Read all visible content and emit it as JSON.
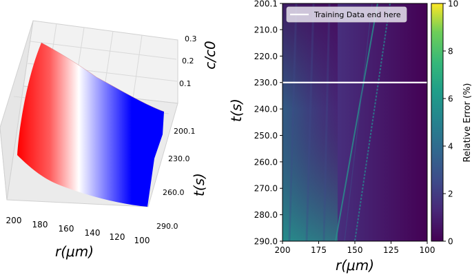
{
  "chart_data": [
    {
      "type": "surface3d",
      "xlabel": "r(μm)",
      "ylabel": "t(s)",
      "zlabel": "c/c0",
      "x_ticks": [
        "200",
        "180",
        "160",
        "140",
        "120",
        "100"
      ],
      "y_ticks": [
        "200.1",
        "230.0",
        "260.0",
        "290.0"
      ],
      "z_ticks": [
        "0.3",
        "0.2",
        "0.1"
      ],
      "xlim": [
        200,
        100
      ],
      "ylim": [
        200.1,
        290
      ],
      "zlim": [
        0,
        0.3
      ],
      "colormap": "bwr",
      "colors": {
        "high": "#ff0000",
        "mid": "#ffffff",
        "low": "#0000ff"
      }
    },
    {
      "type": "heatmap",
      "xlabel": "r(μm)",
      "ylabel": "t(s)",
      "x_ticks": [
        "200",
        "175",
        "150",
        "125",
        "100"
      ],
      "y_ticks": [
        "200.1",
        "210.0",
        "220.0",
        "230.0",
        "240.0",
        "250.0",
        "260.0",
        "270.0",
        "280.0",
        "290.0"
      ],
      "xlim": [
        200,
        100
      ],
      "ylim": [
        200.1,
        290
      ],
      "colorbar": {
        "label": "Relative Error (%)",
        "ticks": [
          "0",
          "2",
          "4",
          "6",
          "8",
          "10"
        ],
        "range": [
          0,
          10
        ]
      },
      "colormap": "viridis",
      "training_line": {
        "t": 230,
        "legend": "Training Data end here",
        "color": "#ffffff"
      },
      "legend_position": "top-left"
    }
  ]
}
